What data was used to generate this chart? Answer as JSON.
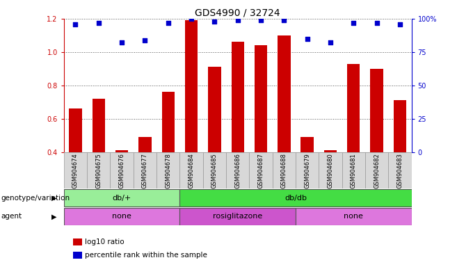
{
  "title": "GDS4990 / 32724",
  "samples": [
    "GSM904674",
    "GSM904675",
    "GSM904676",
    "GSM904677",
    "GSM904678",
    "GSM904684",
    "GSM904685",
    "GSM904686",
    "GSM904687",
    "GSM904688",
    "GSM904679",
    "GSM904680",
    "GSM904681",
    "GSM904682",
    "GSM904683"
  ],
  "log10_ratio": [
    0.66,
    0.72,
    0.41,
    0.49,
    0.76,
    1.19,
    0.91,
    1.06,
    1.04,
    1.1,
    0.49,
    0.41,
    0.93,
    0.9,
    0.71
  ],
  "percentile_rank": [
    96,
    97,
    82,
    84,
    97,
    100,
    98,
    99,
    99,
    99,
    85,
    82,
    97,
    97,
    96
  ],
  "bar_color": "#cc0000",
  "dot_color": "#0000cc",
  "ylim_left": [
    0.4,
    1.2
  ],
  "ylim_right": [
    0,
    100
  ],
  "yticks_left": [
    0.4,
    0.6,
    0.8,
    1.0,
    1.2
  ],
  "yticks_right": [
    0,
    25,
    50,
    75,
    100
  ],
  "yticklabels_right": [
    "0",
    "25",
    "50",
    "75",
    "100%"
  ],
  "genotype_groups": [
    {
      "label": "db/+",
      "start": 0,
      "end": 5,
      "color": "#99ee99"
    },
    {
      "label": "db/db",
      "start": 5,
      "end": 15,
      "color": "#44dd44"
    }
  ],
  "agent_groups": [
    {
      "label": "none",
      "start": 0,
      "end": 5,
      "color": "#dd77dd"
    },
    {
      "label": "rosiglitazone",
      "start": 5,
      "end": 10,
      "color": "#cc55cc"
    },
    {
      "label": "none",
      "start": 10,
      "end": 15,
      "color": "#dd77dd"
    }
  ],
  "genotype_label": "genotype/variation",
  "agent_label": "agent",
  "legend_log10": "log10 ratio",
  "legend_pct": "percentile rank within the sample",
  "background_color": "#ffffff",
  "tick_label_bg": "#cccccc",
  "grid_color": "#555555",
  "title_fontsize": 10,
  "tick_fontsize": 7,
  "row_label_fontsize": 7.5,
  "row_content_fontsize": 8,
  "sample_fontsize": 6
}
